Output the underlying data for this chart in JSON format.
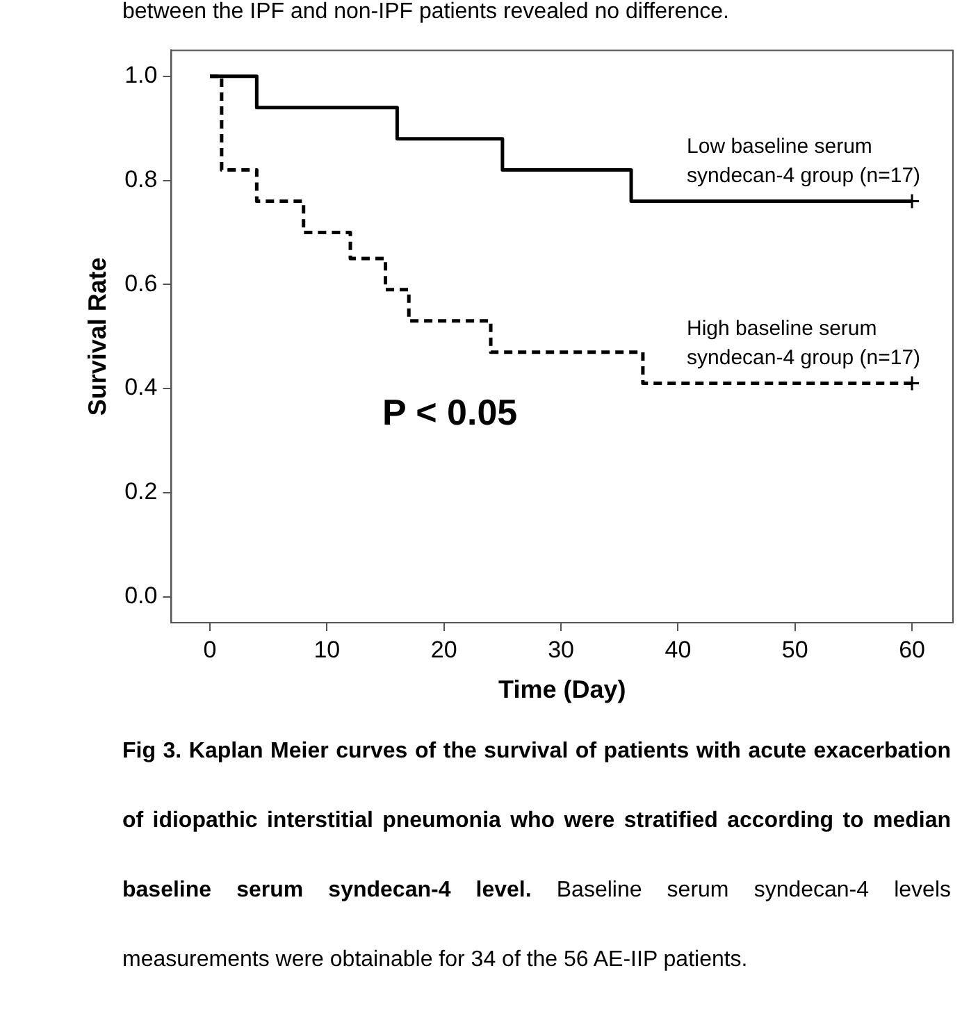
{
  "chart_data": {
    "type": "step",
    "xlabel": "Time (Day)",
    "ylabel": "Survival Rate",
    "xlim": [
      -3.3,
      63.5
    ],
    "ylim": [
      -0.05,
      1.05
    ],
    "xticks": [
      0,
      10,
      20,
      30,
      40,
      50,
      60
    ],
    "yticks": [
      {
        "value": 0,
        "label": "0.0"
      },
      {
        "value": 0.2,
        "label": "0.2"
      },
      {
        "value": 0.4,
        "label": "0.4"
      },
      {
        "value": 0.6,
        "label": "0.6"
      },
      {
        "value": 0.8,
        "label": "0.8"
      },
      {
        "value": 1,
        "label": "1.0"
      }
    ],
    "grid": false,
    "legend": false,
    "series": [
      {
        "name": "Low baseline serum syndecan-4 group (n=17)",
        "color": "#000000",
        "line_style": "solid",
        "x": [
          0,
          4,
          16,
          25,
          36,
          60
        ],
        "values": [
          1,
          0.94,
          0.88,
          0.82,
          0.76,
          0.76
        ]
      },
      {
        "name": "High baseline serum syndecan-4 group (n=17)",
        "color": "#000000",
        "line_style": "dashed",
        "x": [
          0,
          1,
          4,
          8,
          12,
          15,
          17,
          24,
          37,
          60
        ],
        "values": [
          1,
          0.82,
          0.76,
          0.7,
          0.65,
          0.59,
          0.53,
          0.47,
          0.41,
          0.41
        ]
      }
    ],
    "annotations": [
      "between the IPF and non-IPF patients revealed no difference.",
      "P < 0.05",
      "Fig 3. Kaplan Meier curves of the survival of patients with acute exacerbation of idiopathic interstitial pneumonia who were stratified according to median baseline serum syndecan-4 level.",
      "Baseline serum syndecan-4 levels measurements were obtainable for 34 of the 56 AE-IIP patients."
    ]
  }
}
